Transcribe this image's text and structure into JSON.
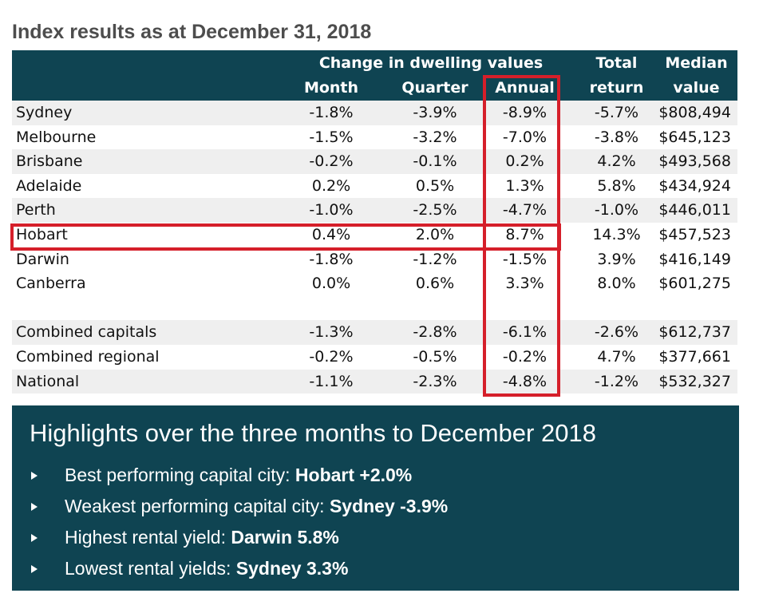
{
  "title": "Index results as at December 31, 2018",
  "table": {
    "group_header": "Change in dwelling values",
    "columns": {
      "month": "Month",
      "quarter": "Quarter",
      "annual": "Annual",
      "total_line1": "Total",
      "total_line2": "return",
      "median_line1": "Median",
      "median_line2": "value"
    },
    "rows": [
      {
        "name": "Sydney",
        "month": "-1.8%",
        "quarter": "-3.9%",
        "annual": "-8.9%",
        "total": "-5.7%",
        "median": "$808,494"
      },
      {
        "name": "Melbourne",
        "month": "-1.5%",
        "quarter": "-3.2%",
        "annual": "-7.0%",
        "total": "-3.8%",
        "median": "$645,123"
      },
      {
        "name": "Brisbane",
        "month": "-0.2%",
        "quarter": "-0.1%",
        "annual": "0.2%",
        "total": "4.2%",
        "median": "$493,568"
      },
      {
        "name": "Adelaide",
        "month": "0.2%",
        "quarter": "0.5%",
        "annual": "1.3%",
        "total": "5.8%",
        "median": "$434,924"
      },
      {
        "name": "Perth",
        "month": "-1.0%",
        "quarter": "-2.5%",
        "annual": "-4.7%",
        "total": "-1.0%",
        "median": "$446,011"
      },
      {
        "name": "Hobart",
        "month": "0.4%",
        "quarter": "2.0%",
        "annual": "8.7%",
        "total": "14.3%",
        "median": "$457,523"
      },
      {
        "name": "Darwin",
        "month": "-1.8%",
        "quarter": "-1.2%",
        "annual": "-1.5%",
        "total": "3.9%",
        "median": "$416,149"
      },
      {
        "name": "Canberra",
        "month": "0.0%",
        "quarter": "0.6%",
        "annual": "3.3%",
        "total": "8.0%",
        "median": "$601,275"
      },
      {
        "name": "Combined capitals",
        "month": "-1.3%",
        "quarter": "-2.8%",
        "annual": "-6.1%",
        "total": "-2.6%",
        "median": "$612,737"
      },
      {
        "name": "Combined regional",
        "month": "-0.2%",
        "quarter": "-0.5%",
        "annual": "-0.2%",
        "total": "4.7%",
        "median": "$377,661"
      },
      {
        "name": "National",
        "month": "-1.1%",
        "quarter": "-2.3%",
        "annual": "-4.8%",
        "total": "-1.2%",
        "median": "$532,327"
      }
    ]
  },
  "highlights": {
    "title": "Highlights over the three months to December 2018",
    "items": [
      {
        "label": "Best performing capital city:",
        "value": "Hobart +2.0%"
      },
      {
        "label": "Weakest performing capital city:",
        "value": "Sydney -3.9%"
      },
      {
        "label": "Highest rental yield:",
        "value": "Darwin 5.8%"
      },
      {
        "label": "Lowest rental yields:",
        "value": "Sydney 3.3%"
      }
    ]
  },
  "colors": {
    "header_bg": "#0f4452",
    "highlight_border": "#d51f2a",
    "stripe": "#efefef"
  }
}
